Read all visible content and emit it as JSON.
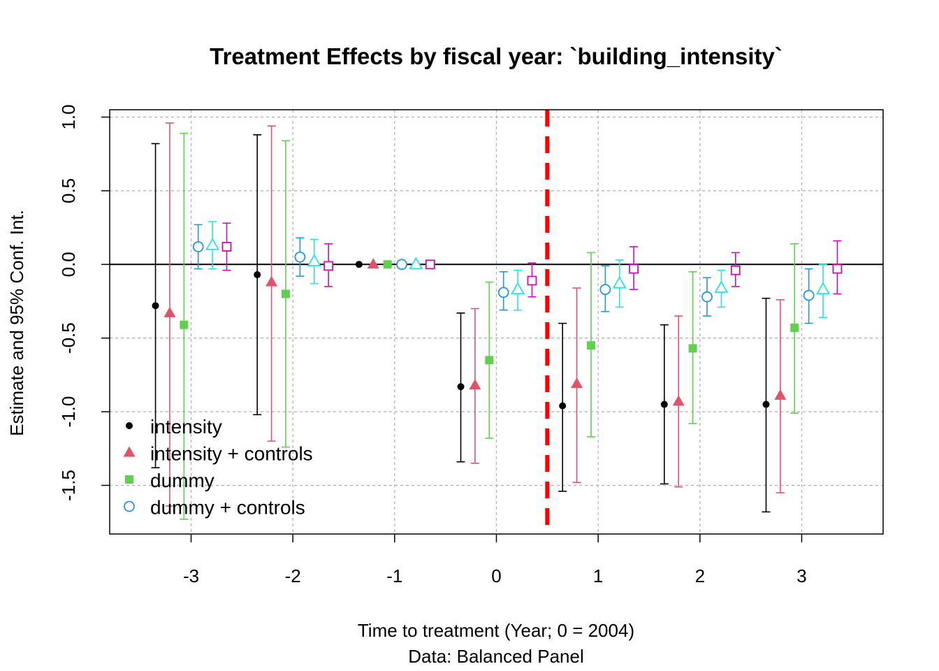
{
  "chart_data": {
    "type": "scatter",
    "subtype": "coefficient-plot-with-error-bars",
    "title": "Treatment Effects by fiscal year: `building_intensity`",
    "xlabel": "Time to treatment (Year; 0 = 2004)",
    "xlabel2": "Data: Balanced Panel",
    "ylabel": "Estimate and 95% Conf. Int.",
    "x_ticks": [
      "-3",
      "-2",
      "-1",
      "0",
      "1",
      "2",
      "3"
    ],
    "x_tick_values": [
      -3,
      -2,
      -1,
      0,
      1,
      2,
      3
    ],
    "y_ticks": [
      "-1.5",
      "-1.0",
      "-0.5",
      "0.0",
      "0.5",
      "1.0"
    ],
    "y_tick_values": [
      -1.5,
      -1.0,
      -0.5,
      0.0,
      0.5,
      1.0
    ],
    "xlim": [
      -3.8,
      3.8
    ],
    "ylim": [
      -1.83,
      1.05
    ],
    "grid": true,
    "reference_line_y": 0.0,
    "vline_x": 0.5,
    "vline_color": "#FF0000",
    "legend_position": "bottom-left",
    "series": [
      {
        "name": "intensity",
        "marker": "filled-circle",
        "color": "#000000",
        "offset": -0.35,
        "x": [
          -3,
          -2,
          -1,
          0,
          1,
          2,
          3
        ],
        "estimate": [
          -0.28,
          -0.07,
          0.0,
          -0.83,
          -0.96,
          -0.95,
          -0.95
        ],
        "ci_low": [
          -1.38,
          -1.02,
          null,
          -1.34,
          -1.54,
          -1.49,
          -1.68
        ],
        "ci_high": [
          0.82,
          0.88,
          null,
          -0.33,
          -0.4,
          -0.41,
          -0.23
        ]
      },
      {
        "name": "intensity + controls",
        "marker": "filled-triangle",
        "color": "#DF536B",
        "offset": -0.21,
        "x": [
          -3,
          -2,
          -1,
          0,
          1,
          2,
          3
        ],
        "estimate": [
          -0.33,
          -0.12,
          0.0,
          -0.82,
          -0.81,
          -0.93,
          -0.89
        ],
        "ci_low": [
          -1.64,
          -1.2,
          null,
          -1.35,
          -1.48,
          -1.51,
          -1.55
        ],
        "ci_high": [
          0.96,
          0.94,
          null,
          -0.3,
          -0.16,
          -0.35,
          -0.24
        ]
      },
      {
        "name": "dummy",
        "marker": "filled-square",
        "color": "#61D04F",
        "offset": -0.07,
        "x": [
          -3,
          -2,
          -1,
          0,
          1,
          2,
          3
        ],
        "estimate": [
          -0.41,
          -0.2,
          0.0,
          -0.65,
          -0.55,
          -0.57,
          -0.43
        ],
        "ci_low": [
          -1.73,
          -1.24,
          null,
          -1.18,
          -1.17,
          -1.08,
          -1.01
        ],
        "ci_high": [
          0.89,
          0.84,
          null,
          -0.12,
          0.08,
          -0.05,
          0.14
        ]
      },
      {
        "name": "dummy + controls",
        "marker": "open-circle",
        "color": "#2297E6",
        "offset": 0.07,
        "x": [
          -3,
          -2,
          -1,
          0,
          1,
          2,
          3
        ],
        "estimate": [
          0.12,
          0.05,
          0.0,
          -0.19,
          -0.17,
          -0.22,
          -0.21
        ],
        "ci_low": [
          -0.03,
          -0.08,
          null,
          -0.31,
          -0.32,
          -0.35,
          -0.4
        ],
        "ci_high": [
          0.27,
          0.18,
          null,
          -0.05,
          -0.01,
          -0.09,
          -0.03
        ]
      },
      {
        "marker": "open-triangle",
        "color": "#28E2E5",
        "offset": 0.21,
        "x": [
          -3,
          -2,
          -1,
          0,
          1,
          2,
          3
        ],
        "estimate": [
          0.13,
          0.02,
          0.0,
          -0.17,
          -0.13,
          -0.16,
          -0.17
        ],
        "ci_low": [
          -0.03,
          -0.13,
          null,
          -0.31,
          -0.29,
          -0.29,
          -0.36
        ],
        "ci_high": [
          0.29,
          0.17,
          null,
          -0.04,
          0.03,
          -0.04,
          0.0
        ]
      },
      {
        "marker": "open-square",
        "color": "#CD0BBC",
        "offset": 0.35,
        "x": [
          -3,
          -2,
          -1,
          0,
          1,
          2,
          3
        ],
        "estimate": [
          0.12,
          -0.01,
          0.0,
          -0.11,
          -0.03,
          -0.04,
          -0.03
        ],
        "ci_low": [
          -0.04,
          -0.15,
          null,
          -0.22,
          -0.17,
          -0.15,
          -0.2
        ],
        "ci_high": [
          0.28,
          0.14,
          null,
          0.01,
          0.12,
          0.08,
          0.16
        ]
      }
    ]
  }
}
